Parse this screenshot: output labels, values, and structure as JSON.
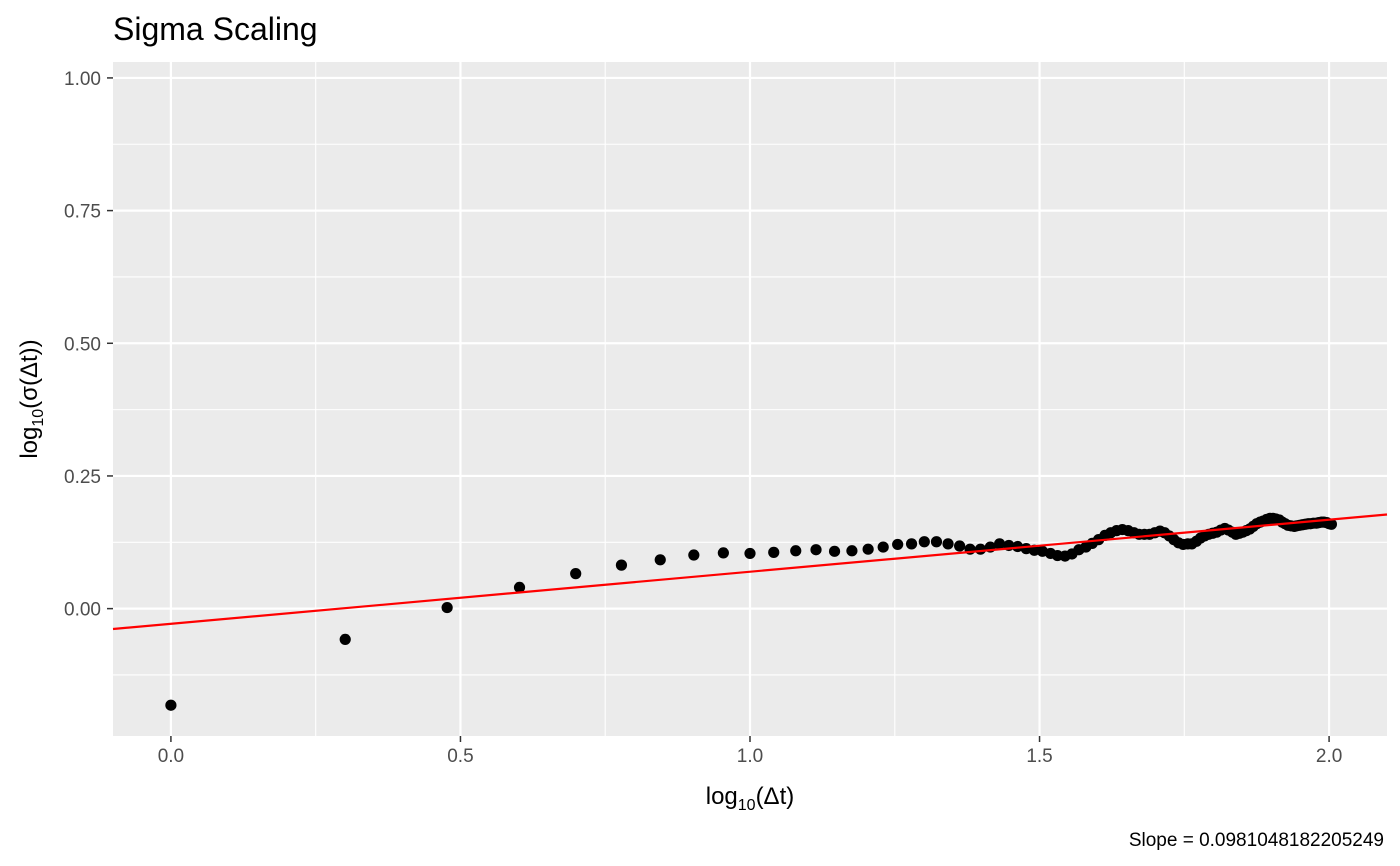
{
  "chart_data": {
    "type": "scatter",
    "title": "Sigma Scaling",
    "xlabel_base": "log",
    "xlabel_sub": "10",
    "xlabel_rest": "(Δt)",
    "ylabel_base": "log",
    "ylabel_sub": "10",
    "ylabel_rest": "(σ(Δt))",
    "caption": "Slope =  0.0981048182205249",
    "xlim": [
      -0.1,
      2.1
    ],
    "ylim": [
      -0.24,
      1.03
    ],
    "x_ticks": [
      0.0,
      0.5,
      1.0,
      1.5,
      2.0
    ],
    "x_tick_labels": [
      "0.0",
      "0.5",
      "1.0",
      "1.5",
      "2.0"
    ],
    "y_ticks": [
      0.0,
      0.25,
      0.5,
      0.75,
      1.0
    ],
    "y_tick_labels": [
      "0.00",
      "0.25",
      "0.50",
      "0.75",
      "1.00"
    ],
    "grid": true,
    "colors": {
      "panel": "#EBEBEB",
      "grid": "#FFFFFF",
      "points": "#000000",
      "fit_line": "#FF0000"
    },
    "fit_line": {
      "slope": 0.0981048182205249,
      "intercept": -0.0286
    },
    "points": [
      [
        0.0,
        -0.182
      ],
      [
        0.301,
        -0.058
      ],
      [
        0.477,
        0.002
      ],
      [
        0.602,
        0.04
      ],
      [
        0.699,
        0.066
      ],
      [
        0.778,
        0.082
      ],
      [
        0.845,
        0.092
      ],
      [
        0.903,
        0.101
      ],
      [
        0.954,
        0.105
      ],
      [
        1.0,
        0.104
      ],
      [
        1.041,
        0.106
      ],
      [
        1.079,
        0.109
      ],
      [
        1.114,
        0.111
      ],
      [
        1.146,
        0.108
      ],
      [
        1.176,
        0.109
      ],
      [
        1.204,
        0.112
      ],
      [
        1.23,
        0.116
      ],
      [
        1.255,
        0.121
      ],
      [
        1.279,
        0.122
      ],
      [
        1.301,
        0.126
      ],
      [
        1.322,
        0.126
      ],
      [
        1.342,
        0.122
      ],
      [
        1.362,
        0.118
      ],
      [
        1.38,
        0.112
      ],
      [
        1.398,
        0.112
      ],
      [
        1.415,
        0.116
      ],
      [
        1.431,
        0.122
      ],
      [
        1.447,
        0.119
      ],
      [
        1.462,
        0.117
      ],
      [
        1.477,
        0.113
      ],
      [
        1.491,
        0.11
      ],
      [
        1.505,
        0.108
      ],
      [
        1.519,
        0.104
      ],
      [
        1.531,
        0.1
      ],
      [
        1.544,
        0.099
      ],
      [
        1.556,
        0.103
      ],
      [
        1.568,
        0.111
      ],
      [
        1.58,
        0.116
      ],
      [
        1.591,
        0.123
      ],
      [
        1.602,
        0.13
      ],
      [
        1.613,
        0.138
      ],
      [
        1.623,
        0.143
      ],
      [
        1.633,
        0.147
      ],
      [
        1.643,
        0.149
      ],
      [
        1.653,
        0.147
      ],
      [
        1.663,
        0.143
      ],
      [
        1.672,
        0.14
      ],
      [
        1.681,
        0.14
      ],
      [
        1.69,
        0.14
      ],
      [
        1.699,
        0.143
      ],
      [
        1.708,
        0.146
      ],
      [
        1.716,
        0.143
      ],
      [
        1.724,
        0.137
      ],
      [
        1.732,
        0.13
      ],
      [
        1.74,
        0.124
      ],
      [
        1.748,
        0.121
      ],
      [
        1.756,
        0.122
      ],
      [
        1.763,
        0.122
      ],
      [
        1.771,
        0.127
      ],
      [
        1.778,
        0.133
      ],
      [
        1.785,
        0.137
      ],
      [
        1.792,
        0.14
      ],
      [
        1.799,
        0.142
      ],
      [
        1.806,
        0.144
      ],
      [
        1.813,
        0.148
      ],
      [
        1.82,
        0.151
      ],
      [
        1.826,
        0.148
      ],
      [
        1.833,
        0.144
      ],
      [
        1.839,
        0.14
      ],
      [
        1.845,
        0.142
      ],
      [
        1.851,
        0.144
      ],
      [
        1.857,
        0.147
      ],
      [
        1.863,
        0.15
      ],
      [
        1.869,
        0.155
      ],
      [
        1.875,
        0.16
      ],
      [
        1.881,
        0.163
      ],
      [
        1.886,
        0.165
      ],
      [
        1.892,
        0.168
      ],
      [
        1.898,
        0.17
      ],
      [
        1.903,
        0.17
      ],
      [
        1.908,
        0.169
      ],
      [
        1.914,
        0.167
      ],
      [
        1.919,
        0.163
      ],
      [
        1.924,
        0.16
      ],
      [
        1.929,
        0.157
      ],
      [
        1.934,
        0.156
      ],
      [
        1.94,
        0.155
      ],
      [
        1.944,
        0.156
      ],
      [
        1.949,
        0.157
      ],
      [
        1.954,
        0.158
      ],
      [
        1.959,
        0.159
      ],
      [
        1.964,
        0.16
      ],
      [
        1.968,
        0.16
      ],
      [
        1.973,
        0.161
      ],
      [
        1.978,
        0.161
      ],
      [
        1.982,
        0.162
      ],
      [
        1.987,
        0.163
      ],
      [
        1.991,
        0.163
      ],
      [
        1.996,
        0.162
      ],
      [
        2.0,
        0.16
      ],
      [
        2.004,
        0.159
      ]
    ]
  }
}
